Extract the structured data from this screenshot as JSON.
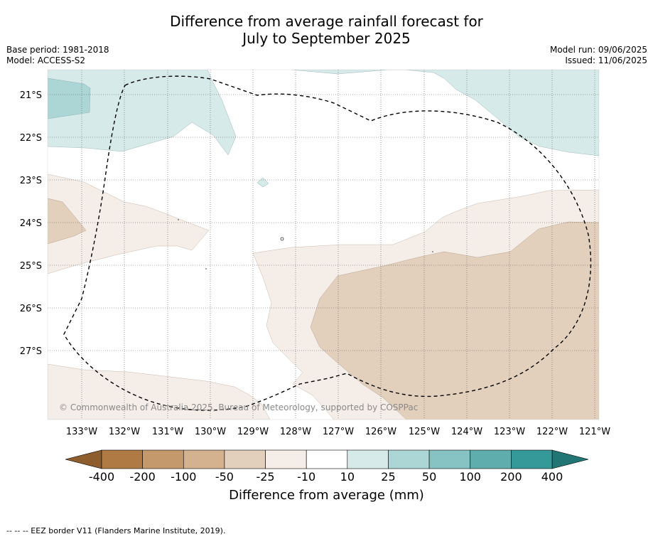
{
  "title": {
    "line1": "Difference from average rainfall forecast for",
    "line2": "July to September 2025"
  },
  "meta": {
    "base_period": "Base period: 1981-2018",
    "model": "Model: ACCESS-S2",
    "model_run": "Model run: 09/06/2025",
    "issued": "Issued: 11/06/2025"
  },
  "axes": {
    "lat_labels": [
      "21°S",
      "22°S",
      "23°S",
      "24°S",
      "25°S",
      "26°S",
      "27°S"
    ],
    "lon_labels": [
      "133°W",
      "132°W",
      "131°W",
      "130°W",
      "129°W",
      "128°W",
      "127°W",
      "126°W",
      "125°W",
      "124°W",
      "123°W",
      "122°W",
      "121°W"
    ]
  },
  "copyright": "© Commonwealth of Australia 2025, Bureau of Meteorology, supported by COSPPac",
  "colorbar": {
    "ticks": [
      "-400",
      "-200",
      "-100",
      "-50",
      "-25",
      "-10",
      "10",
      "25",
      "50",
      "100",
      "200",
      "400"
    ],
    "colors": [
      "#af7a44",
      "#c4996c",
      "#d4b28f",
      "#e2d0bd",
      "#f4ede8",
      "#ffffff",
      "#d6eae9",
      "#acd6d6",
      "#86c3c2",
      "#5fadac",
      "#35999a"
    ],
    "under_color": "#8e5d2e",
    "over_color": "#217575",
    "label": "Difference from average (mm)"
  },
  "footer": "--  --  -- EEZ border V11 (Flanders Marine Institute, 2019)."
}
